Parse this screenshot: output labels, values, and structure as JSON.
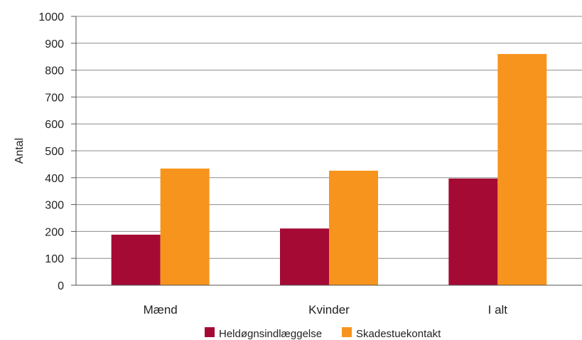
{
  "chart_data": {
    "type": "bar",
    "title": "",
    "xlabel": "",
    "ylabel": "Antal",
    "ylim": [
      0,
      1000
    ],
    "yticks": [
      0,
      100,
      200,
      300,
      400,
      500,
      600,
      700,
      800,
      900,
      1000
    ],
    "grid": true,
    "legend_position": "bottom",
    "categories": [
      "Mænd",
      "Kvinder",
      "I alt"
    ],
    "series": [
      {
        "name": "Heldøgnsindlæggelse",
        "color": "#a50a34",
        "values": [
          188,
          211,
          397
        ]
      },
      {
        "name": "Skadestuekontakt",
        "color": "#f7941d",
        "values": [
          434,
          426,
          860
        ]
      }
    ]
  }
}
